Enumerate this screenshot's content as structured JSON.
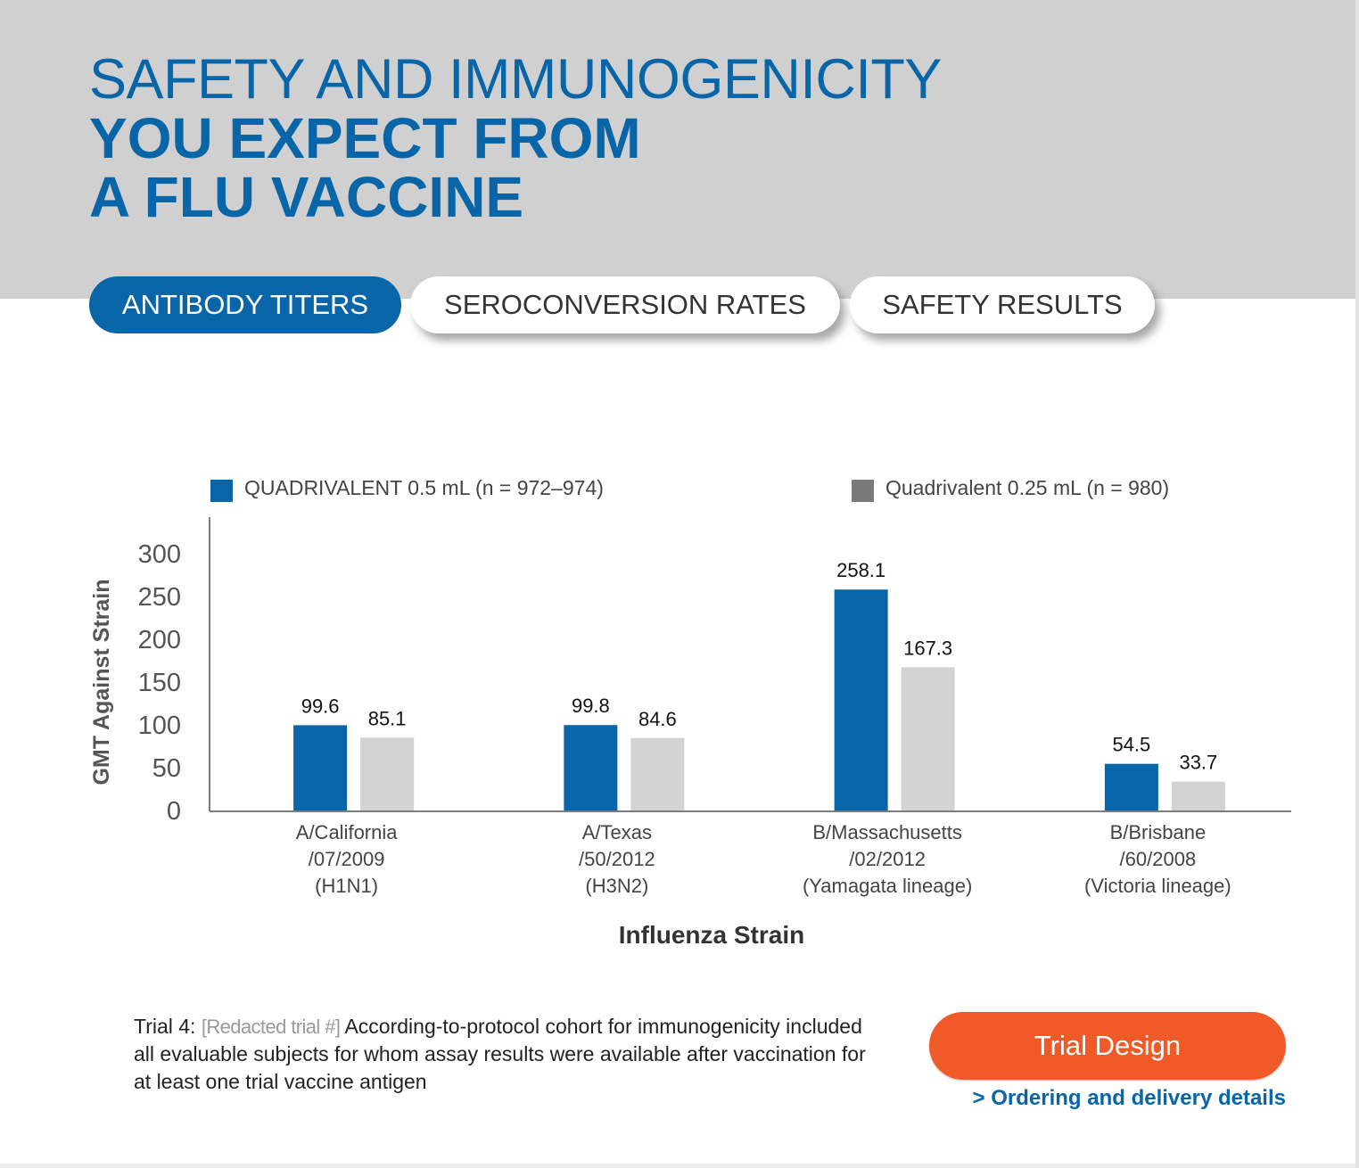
{
  "header": {
    "title_line1": "SAFETY AND IMMUNOGENICITY",
    "title_line2": "YOU EXPECT FROM",
    "title_line3": "A FLU VACCINE"
  },
  "tabs": [
    {
      "label": "ANTIBODY TITERS",
      "active": true
    },
    {
      "label": "SEROCONVERSION RATES",
      "active": false
    },
    {
      "label": "SAFETY RESULTS",
      "active": false
    }
  ],
  "chart_data": {
    "type": "bar",
    "title": "",
    "xlabel": "Influenza Strain",
    "ylabel": "GMT Against Strain",
    "ylim": [
      0,
      300
    ],
    "yticks": [
      0,
      50,
      100,
      150,
      200,
      250,
      300
    ],
    "grid": false,
    "legend_position": "top",
    "categories": [
      [
        "A/California",
        "/07/2009",
        "(H1N1)"
      ],
      [
        "A/Texas",
        "/50/2012",
        "(H3N2)"
      ],
      [
        "B/Massachusetts",
        "/02/2012",
        "(Yamagata lineage)"
      ],
      [
        "B/Brisbane",
        "/60/2008",
        "(Victoria lineage)"
      ]
    ],
    "series": [
      {
        "name": "QUADRIVALENT 0.5 mL (n = 972–974)",
        "color": "#0765a8",
        "values": [
          99.6,
          99.8,
          258.1,
          54.5
        ]
      },
      {
        "name": "Quadrivalent 0.25 mL (n = 980)",
        "color": "#d3d3d3",
        "legend_color": "#7a7a7a",
        "values": [
          85.1,
          84.6,
          167.3,
          33.7
        ]
      }
    ]
  },
  "footnote": {
    "prefix": "Trial 4: ",
    "redacted": "[Redacted trial #]",
    "text": " According-to-protocol cohort for immunogenicity included all evaluable subjects for whom assay results were available after vaccination for at least one trial vaccine antigen"
  },
  "cta": {
    "trial_design_label": "Trial Design",
    "ordering_link_label": "> Ordering and delivery details"
  }
}
